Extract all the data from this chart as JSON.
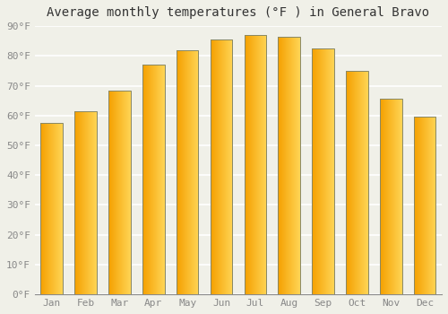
{
  "title": "Average monthly temperatures (°F ) in General Bravo",
  "months": [
    "Jan",
    "Feb",
    "Mar",
    "Apr",
    "May",
    "Jun",
    "Jul",
    "Aug",
    "Sep",
    "Oct",
    "Nov",
    "Dec"
  ],
  "values": [
    57.5,
    61.5,
    68.5,
    77.0,
    82.0,
    85.5,
    87.0,
    86.5,
    82.5,
    75.0,
    65.5,
    59.5
  ],
  "bar_color_left": "#F5A000",
  "bar_color_right": "#FFD555",
  "bar_edge_color": "#888866",
  "background_color": "#F0F0E8",
  "plot_bg_color": "#F0F0E8",
  "grid_color": "#FFFFFF",
  "ylim": [
    0,
    90
  ],
  "yticks": [
    0,
    10,
    20,
    30,
    40,
    50,
    60,
    70,
    80,
    90
  ],
  "ytick_labels": [
    "0°F",
    "10°F",
    "20°F",
    "30°F",
    "40°F",
    "50°F",
    "60°F",
    "70°F",
    "80°F",
    "90°F"
  ],
  "title_fontsize": 10,
  "tick_fontsize": 8,
  "font_family": "monospace"
}
